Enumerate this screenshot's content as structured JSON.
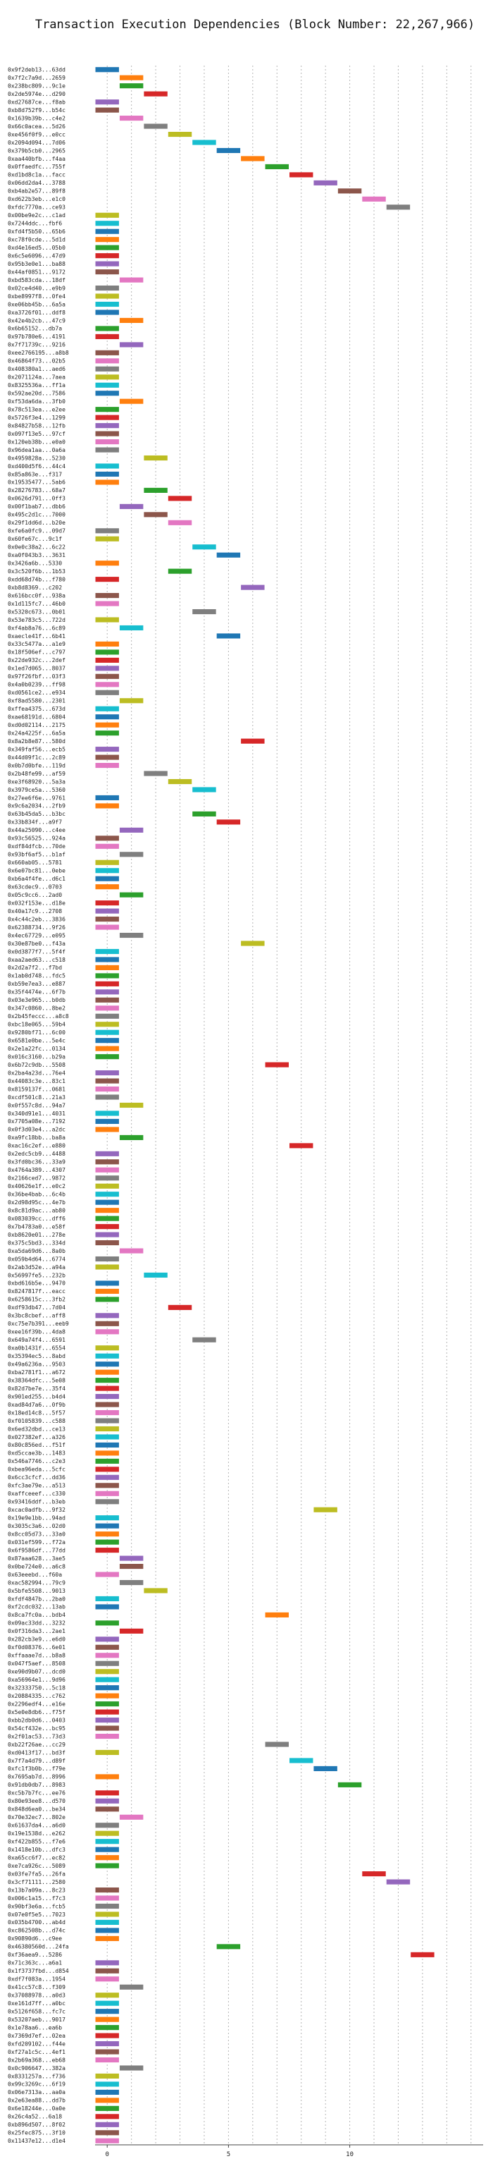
{
  "chart_data": {
    "type": "bar",
    "orientation": "horizontal",
    "title": "Transaction Execution Dependencies (Block Number: 22,267,966)",
    "xlabel": "",
    "ylabel": "",
    "xlim": [
      -0.5,
      15.5
    ],
    "xticks": [
      0,
      5,
      10
    ],
    "grid": true,
    "legend": "none",
    "palette": [
      "#1f77b4",
      "#ff7f0e",
      "#2ca02c",
      "#d62728",
      "#9467bd",
      "#8c564b",
      "#e377c2",
      "#7f7f7f",
      "#bcbd22",
      "#17becf"
    ],
    "bars": [
      {
        "label": "0x9f2deb13...63dd",
        "x": 0
      },
      {
        "label": "0x7f2c7a9d...2659",
        "x": 1
      },
      {
        "label": "0x238bc809...9c1e",
        "x": 1
      },
      {
        "label": "0x2de5974e...d290",
        "x": 2
      },
      {
        "label": "0xd27687ce...f8ab",
        "x": 0
      },
      {
        "label": "0xb8d752f9...b54c",
        "x": 0
      },
      {
        "label": "0x1639b39b...c4e2",
        "x": 1
      },
      {
        "label": "0x66c0acea...5d26",
        "x": 2
      },
      {
        "label": "0xe456f0f9...e0cc",
        "x": 3
      },
      {
        "label": "0x2094d094...7d06",
        "x": 4
      },
      {
        "label": "0x379b5cb0...2965",
        "x": 5
      },
      {
        "label": "0xaa440bfb...f4aa",
        "x": 6
      },
      {
        "label": "0x0ffaedfc...755f",
        "x": 7
      },
      {
        "label": "0xd1bd8c1a...facc",
        "x": 8
      },
      {
        "label": "0x06dd2da4...3788",
        "x": 9
      },
      {
        "label": "0xb4ab2e57...89f8",
        "x": 10
      },
      {
        "label": "0xd622b3eb...e1c0",
        "x": 11
      },
      {
        "label": "0xfdc7770a...ce93",
        "x": 12
      },
      {
        "label": "0x00be9e2c...c1ad",
        "x": 0
      },
      {
        "label": "0x7244ddc...fbf6",
        "x": 0
      },
      {
        "label": "0xfd4f5b50...65b6",
        "x": 0
      },
      {
        "label": "0xc78f0cde...5d1d",
        "x": 0
      },
      {
        "label": "0xd4e16ed5...05b0",
        "x": 0
      },
      {
        "label": "0x6c5e6096...47d9",
        "x": 0
      },
      {
        "label": "0x95b3e0e1...ba88",
        "x": 0
      },
      {
        "label": "0x44af0851...9172",
        "x": 0
      },
      {
        "label": "0xbd583cda...18df",
        "x": 1
      },
      {
        "label": "0x02ce4d40...e9b9",
        "x": 0
      },
      {
        "label": "0xbe8997f8...0fe4",
        "x": 0
      },
      {
        "label": "0xe06bb45b...6a5a",
        "x": 0
      },
      {
        "label": "0xa3726f01...ddf8",
        "x": 0
      },
      {
        "label": "0x42e4b2cb...47c9",
        "x": 1
      },
      {
        "label": "0x6b65152...db7a",
        "x": 0
      },
      {
        "label": "0x97b780e6...4191",
        "x": 0
      },
      {
        "label": "0x7f71739c...9216",
        "x": 1
      },
      {
        "label": "0xee2766195...a8b8",
        "x": 0
      },
      {
        "label": "0x46864f73...02b5",
        "x": 0
      },
      {
        "label": "0x408380a1...aed6",
        "x": 0
      },
      {
        "label": "0x2071124a...7aea",
        "x": 0
      },
      {
        "label": "0x8325536a...ff1a",
        "x": 0
      },
      {
        "label": "0x592ae20d...7586",
        "x": 0
      },
      {
        "label": "0xf53da6da...3fb0",
        "x": 1
      },
      {
        "label": "0x78c513ea...e2ee",
        "x": 0
      },
      {
        "label": "0x5726f3e4...1299",
        "x": 0
      },
      {
        "label": "0x84827b58...12fb",
        "x": 0
      },
      {
        "label": "0x097f13e5...97cf",
        "x": 0
      },
      {
        "label": "0x120eb38b...e0a0",
        "x": 0
      },
      {
        "label": "0x96dea1aa...0a6a",
        "x": 0
      },
      {
        "label": "0x4959828a...5230",
        "x": 2
      },
      {
        "label": "0xd400d5f6...44c4",
        "x": 0
      },
      {
        "label": "0x85a863e...f317",
        "x": 0
      },
      {
        "label": "0x19535477...5ab6",
        "x": 0
      },
      {
        "label": "0x28276783...68a7",
        "x": 2
      },
      {
        "label": "0x0626d791...0ff3",
        "x": 3
      },
      {
        "label": "0x00f1bab7...dbb6",
        "x": 1
      },
      {
        "label": "0x495c2d1c...7000",
        "x": 2
      },
      {
        "label": "0x29f1dd6d...b20e",
        "x": 3
      },
      {
        "label": "0xfe6a0fc9...09d7",
        "x": 0
      },
      {
        "label": "0x60fe67c...9c1f",
        "x": 0
      },
      {
        "label": "0x0e0c38a2...6c22",
        "x": 4
      },
      {
        "label": "0xa0f043b3...3631",
        "x": 5
      },
      {
        "label": "0x3426a6b...5330",
        "x": 0
      },
      {
        "label": "0x3c520f6b...1b53",
        "x": 3
      },
      {
        "label": "0xdd68d74b...f780",
        "x": 0
      },
      {
        "label": "0xb8d8369...c202",
        "x": 6
      },
      {
        "label": "0x616bcc0f...938a",
        "x": 0
      },
      {
        "label": "0x1d115fc7...46b0",
        "x": 0
      },
      {
        "label": "0x5320c673...0b01",
        "x": 4
      },
      {
        "label": "0x53e783c5...722d",
        "x": 0
      },
      {
        "label": "0xf4ab8a76...6c89",
        "x": 1
      },
      {
        "label": "0xaecle41f...6b41",
        "x": 5
      },
      {
        "label": "0x33c5477a...a1e9",
        "x": 0
      },
      {
        "label": "0x18f506ef...c797",
        "x": 0
      },
      {
        "label": "0x22de932c...2def",
        "x": 0
      },
      {
        "label": "0x1ed7d065...8037",
        "x": 0
      },
      {
        "label": "0x97f26fbf...03f3",
        "x": 0
      },
      {
        "label": "0x4a0b0239...ff98",
        "x": 0
      },
      {
        "label": "0xd0561ce2...e934",
        "x": 0
      },
      {
        "label": "0xf8ad5580...2301",
        "x": 1
      },
      {
        "label": "0xffea4375...673d",
        "x": 0
      },
      {
        "label": "0xae68191d...6804",
        "x": 0
      },
      {
        "label": "0xd0d02114...2175",
        "x": 0
      },
      {
        "label": "0x24a4225f...6a5a",
        "x": 0
      },
      {
        "label": "0x8a2b8e87...580d",
        "x": 6
      },
      {
        "label": "0x349faf56...ecb5",
        "x": 0
      },
      {
        "label": "0x44d09f1c...2c89",
        "x": 0
      },
      {
        "label": "0x0b7d0bfe...119d",
        "x": 0
      },
      {
        "label": "0x2b48fe99...af59",
        "x": 2
      },
      {
        "label": "0xe3f68920...5a3a",
        "x": 3
      },
      {
        "label": "0x3979ce5a...5360",
        "x": 4
      },
      {
        "label": "0x27ee6f6e...9761",
        "x": 0
      },
      {
        "label": "0x9c6a2034...2fb9",
        "x": 0
      },
      {
        "label": "0x63b45da5...b3bc",
        "x": 4
      },
      {
        "label": "0x33b834f...a9f7",
        "x": 5
      },
      {
        "label": "0x44a25090...c4ee",
        "x": 1
      },
      {
        "label": "0x93c56525...924a",
        "x": 0
      },
      {
        "label": "0xdf84dfcb...70de",
        "x": 0
      },
      {
        "label": "0x93bf6af5...b1af",
        "x": 1
      },
      {
        "label": "0x660ab05...5781",
        "x": 0
      },
      {
        "label": "0x6e07bc81...0ebe",
        "x": 0
      },
      {
        "label": "0xb6a4f4fe...d6c1",
        "x": 0
      },
      {
        "label": "0x63cdec9...0703",
        "x": 0
      },
      {
        "label": "0x05c9cc6...2ad0",
        "x": 1
      },
      {
        "label": "0x032f153e...d18e",
        "x": 0
      },
      {
        "label": "0x40a17c9...2708",
        "x": 0
      },
      {
        "label": "0x4c44c2eb...3836",
        "x": 0
      },
      {
        "label": "0x62388734...9f26",
        "x": 0
      },
      {
        "label": "0x4ec67729...e095",
        "x": 1
      },
      {
        "label": "0x30e87be0...f43a",
        "x": 6
      },
      {
        "label": "0x0d3877f7...5f4f",
        "x": 0
      },
      {
        "label": "0xaa2aed63...c518",
        "x": 0
      },
      {
        "label": "0x2d2a7f2...f7bd",
        "x": 0
      },
      {
        "label": "0x1ab0d748...fdc5",
        "x": 0
      },
      {
        "label": "0xb59e7ea3...e887",
        "x": 0
      },
      {
        "label": "0x35f4474e...6f7b",
        "x": 0
      },
      {
        "label": "0x03e3e965...b0db",
        "x": 0
      },
      {
        "label": "0x347c0860...8be2",
        "x": 0
      },
      {
        "label": "0x2b45feccc...a8c8",
        "x": 0
      },
      {
        "label": "0xbc18e065...59b4",
        "x": 0
      },
      {
        "label": "0x9280bf71...6c00",
        "x": 0
      },
      {
        "label": "0x6581e0be...5e4c",
        "x": 0
      },
      {
        "label": "0x2e1a22fc...0134",
        "x": 0
      },
      {
        "label": "0x016c3160...b29a",
        "x": 0
      },
      {
        "label": "0x6b72c9db...5508",
        "x": 7
      },
      {
        "label": "0x2ba4a23d...76e4",
        "x": 0
      },
      {
        "label": "0x44083c3e...83c1",
        "x": 0
      },
      {
        "label": "0x8159137f...0681",
        "x": 0
      },
      {
        "label": "0xcdf501c8...21a3",
        "x": 0
      },
      {
        "label": "0x0f557c8d...94a7",
        "x": 1
      },
      {
        "label": "0x340d91e1...4031",
        "x": 0
      },
      {
        "label": "0x7705a08e...7192",
        "x": 0
      },
      {
        "label": "0x0f3d03e4...a2dc",
        "x": 0
      },
      {
        "label": "0xa9fc18bb...ba8a",
        "x": 1
      },
      {
        "label": "0xac16c2ef...e880",
        "x": 8
      },
      {
        "label": "0x2edc5cb9...4488",
        "x": 0
      },
      {
        "label": "0x3fd0bc36...33a9",
        "x": 0
      },
      {
        "label": "0x4764a389...4307",
        "x": 0
      },
      {
        "label": "0x2166ced7...9872",
        "x": 0
      },
      {
        "label": "0x40626e1f...e0c2",
        "x": 0
      },
      {
        "label": "0x36be4bab...6c4b",
        "x": 0
      },
      {
        "label": "0x2d98d95c...4e7b",
        "x": 0
      },
      {
        "label": "0x8c81d9ac...ab80",
        "x": 0
      },
      {
        "label": "0x083039cc...dff6",
        "x": 0
      },
      {
        "label": "0x7b4783a0...e58f",
        "x": 0
      },
      {
        "label": "0xb8620e01...278e",
        "x": 0
      },
      {
        "label": "0x375c5bd3...334d",
        "x": 0
      },
      {
        "label": "0xa5da69d6...8a0b",
        "x": 1
      },
      {
        "label": "0x059b4d64...6774",
        "x": 0
      },
      {
        "label": "0x2ab3d52e...a94a",
        "x": 0
      },
      {
        "label": "0x56997fe5...232b",
        "x": 2
      },
      {
        "label": "0xbd616b5e...9470",
        "x": 0
      },
      {
        "label": "0x8247817f...eacc",
        "x": 0
      },
      {
        "label": "0x6258615c...3fb2",
        "x": 0
      },
      {
        "label": "0xdf93db47...7d04",
        "x": 3
      },
      {
        "label": "0x3bc8cbef...aff8",
        "x": 0
      },
      {
        "label": "0xc75e7b391...eeb9",
        "x": 0
      },
      {
        "label": "0xee16f39b...4da8",
        "x": 0
      },
      {
        "label": "0x649a74f4...6591",
        "x": 4
      },
      {
        "label": "0xa0b1431f...6554",
        "x": 0
      },
      {
        "label": "0x35394ec5...8abd",
        "x": 0
      },
      {
        "label": "0x49a6236a...9503",
        "x": 0
      },
      {
        "label": "0xba2781f1...a672",
        "x": 0
      },
      {
        "label": "0x38364dfc...5e08",
        "x": 0
      },
      {
        "label": "0x82d7be7e...35f4",
        "x": 0
      },
      {
        "label": "0x901ed255...b4d4",
        "x": 0
      },
      {
        "label": "0xad84d7a6...0f9b",
        "x": 0
      },
      {
        "label": "0x18ed14c8...5f57",
        "x": 0
      },
      {
        "label": "0xf0105839...c588",
        "x": 0
      },
      {
        "label": "0x6ed32dbd...ce13",
        "x": 0
      },
      {
        "label": "0x027382ef...a326",
        "x": 0
      },
      {
        "label": "0x80c856ed...f51f",
        "x": 0
      },
      {
        "label": "0xd5ccae3b...1483",
        "x": 0
      },
      {
        "label": "0x546a7746...c2e3",
        "x": 0
      },
      {
        "label": "0xbea96eda...5cfc",
        "x": 0
      },
      {
        "label": "0x6cc3cfcf...dd36",
        "x": 0
      },
      {
        "label": "0xfc3ae79e...a513",
        "x": 0
      },
      {
        "label": "0xaffceeef...c330",
        "x": 0
      },
      {
        "label": "0x93416ddf...b3eb",
        "x": 0
      },
      {
        "label": "0xcac0adfb...9f32",
        "x": 9
      },
      {
        "label": "0x19e9e1bb...94ad",
        "x": 0
      },
      {
        "label": "0x3035c3a6...02d0",
        "x": 0
      },
      {
        "label": "0x8cc05d73...33a0",
        "x": 0
      },
      {
        "label": "0x031ef599...f72a",
        "x": 0
      },
      {
        "label": "0x6f9586df...77dd",
        "x": 0
      },
      {
        "label": "0x87aaa628...3ae5",
        "x": 1
      },
      {
        "label": "0x0be724e0...a6c8",
        "x": 1
      },
      {
        "label": "0x63eeebd...f60a",
        "x": 0
      },
      {
        "label": "0xac582994...79c9",
        "x": 1
      },
      {
        "label": "0x5bfe5508...9013",
        "x": 2
      },
      {
        "label": "0xfdf4847b...2ba0",
        "x": 0
      },
      {
        "label": "0xf2cdc032...13ab",
        "x": 0
      },
      {
        "label": "0x8ca7fc0a...bdb4",
        "x": 7
      },
      {
        "label": "0x09ac33dd...3232",
        "x": 0
      },
      {
        "label": "0x0f316da3...2ae1",
        "x": 1
      },
      {
        "label": "0x282cb3e9...e6d0",
        "x": 0
      },
      {
        "label": "0xf0d08376...6e01",
        "x": 0
      },
      {
        "label": "0xffaaae7d...b8a8",
        "x": 0
      },
      {
        "label": "0x047f5aef...8508",
        "x": 0
      },
      {
        "label": "0xe90d9b07...dcd0",
        "x": 0
      },
      {
        "label": "0xa56964e1...9d96",
        "x": 0
      },
      {
        "label": "0x32333750...5c18",
        "x": 0
      },
      {
        "label": "0x20884335...c762",
        "x": 0
      },
      {
        "label": "0x2296edf4...e16e",
        "x": 0
      },
      {
        "label": "0x5e0e8db6...f75f",
        "x": 0
      },
      {
        "label": "0xbb2db0d6...0403",
        "x": 0
      },
      {
        "label": "0x54cf432e...bc95",
        "x": 0
      },
      {
        "label": "0x2f01ac53...73d3",
        "x": 0
      },
      {
        "label": "0xb22f26ae...cc29",
        "x": 7
      },
      {
        "label": "0xd0413f17...bd3f",
        "x": 0
      },
      {
        "label": "0x7f7a4d79...d89f",
        "x": 8
      },
      {
        "label": "0xfc1f3b0b...f79e",
        "x": 9
      },
      {
        "label": "0x7695ab7d...8996",
        "x": 0
      },
      {
        "label": "0x91db0db7...8983",
        "x": 10
      },
      {
        "label": "0xc5b7b7fc...ee76",
        "x": 0
      },
      {
        "label": "0x80e93ee8...d570",
        "x": 0
      },
      {
        "label": "0x848d6ea0...be34",
        "x": 0
      },
      {
        "label": "0x70e32ec7...802e",
        "x": 1
      },
      {
        "label": "0x61637da4...a6d0",
        "x": 0
      },
      {
        "label": "0x19e1538d...e262",
        "x": 0
      },
      {
        "label": "0xf422b855...f7e6",
        "x": 0
      },
      {
        "label": "0x1418e10b...dfc3",
        "x": 0
      },
      {
        "label": "0xa65cc6f7...ec82",
        "x": 0
      },
      {
        "label": "0xe7ca926c...5089",
        "x": 0
      },
      {
        "label": "0x03fe7fa5...26fa",
        "x": 11
      },
      {
        "label": "0x3cf71111...2580",
        "x": 12
      },
      {
        "label": "0x13b7a09a...8c23",
        "x": 0
      },
      {
        "label": "0x006c1a15...f7c3",
        "x": 0
      },
      {
        "label": "0x90bf3e6a...fcb5",
        "x": 0
      },
      {
        "label": "0x07e0f5e5...7023",
        "x": 0
      },
      {
        "label": "0x035b4700...ab4d",
        "x": 0
      },
      {
        "label": "0xc862508b...d74c",
        "x": 0
      },
      {
        "label": "0x90890d6...c9ee",
        "x": 0
      },
      {
        "label": "0x46380560d...24fa",
        "x": 5
      },
      {
        "label": "0xf36aea9...5286",
        "x": 13
      },
      {
        "label": "0x71c363c...a6a1",
        "x": 0
      },
      {
        "label": "0x1f3737fbd...d854",
        "x": 0
      },
      {
        "label": "0xdf7f083a...1954",
        "x": 0
      },
      {
        "label": "0x41cc57c8...f309",
        "x": 1
      },
      {
        "label": "0x37088978...a0d3",
        "x": 0
      },
      {
        "label": "0xe161d7ff...a0bc",
        "x": 0
      },
      {
        "label": "0x5126f658...fc7c",
        "x": 0
      },
      {
        "label": "0x53207aeb...9017",
        "x": 0
      },
      {
        "label": "0x1e78aa6...ea6b",
        "x": 0
      },
      {
        "label": "0x7369d7ef...02ea",
        "x": 0
      },
      {
        "label": "0xfd209102...f44e",
        "x": 0
      },
      {
        "label": "0xf27a1c5c...4ef1",
        "x": 0
      },
      {
        "label": "0x2b69a368...eb68",
        "x": 0
      },
      {
        "label": "0x0c906647...382a",
        "x": 1
      },
      {
        "label": "0x8331257a...f736",
        "x": 0
      },
      {
        "label": "0x99c3269c...6f19",
        "x": 0
      },
      {
        "label": "0x06e7313a...aa0a",
        "x": 0
      },
      {
        "label": "0x2e63ea88...dd7b",
        "x": 0
      },
      {
        "label": "0x6e18244e...0a0e",
        "x": 0
      },
      {
        "label": "0x26c4a52...6a18",
        "x": 0
      },
      {
        "label": "0xb896d507...8f02",
        "x": 0
      },
      {
        "label": "0x25fec875...3f10",
        "x": 0
      },
      {
        "label": "0x11437e12...d1e4",
        "x": 0
      }
    ]
  }
}
